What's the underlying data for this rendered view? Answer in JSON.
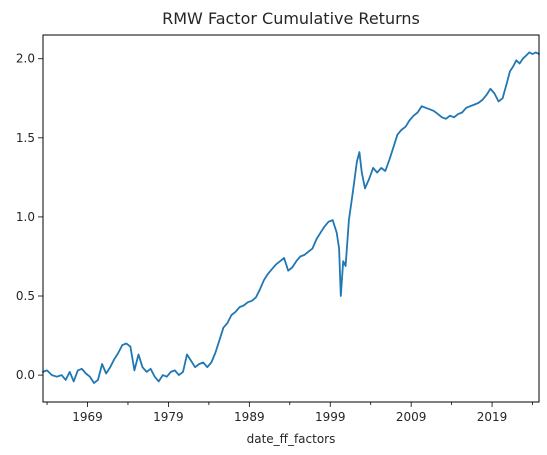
{
  "chart_data": {
    "type": "line",
    "title": "RMW Factor Cumulative Returns",
    "xlabel": "date_ff_factors",
    "ylabel": "",
    "x_ticks": [
      "1969",
      "1979",
      "1989",
      "1999",
      "2009",
      "2019"
    ],
    "y_ticks": [
      "0.0",
      "0.5",
      "1.0",
      "1.5",
      "2.0"
    ],
    "xlim": [
      1963.5,
      2024.8
    ],
    "ylim": [
      -0.17,
      2.15
    ],
    "grid": false,
    "legend": "none",
    "series": [
      {
        "color": "#1f77b4",
        "x": [
          1963.5,
          1964.0,
          1964.6,
          1965.2,
          1965.8,
          1966.3,
          1966.8,
          1967.3,
          1967.8,
          1968.3,
          1968.8,
          1969.3,
          1969.8,
          1970.3,
          1970.8,
          1971.3,
          1971.8,
          1972.3,
          1972.8,
          1973.3,
          1973.8,
          1974.3,
          1974.8,
          1975.3,
          1975.8,
          1976.3,
          1976.8,
          1977.3,
          1977.8,
          1978.3,
          1978.8,
          1979.3,
          1979.8,
          1980.3,
          1980.8,
          1981.3,
          1981.8,
          1982.3,
          1982.8,
          1983.3,
          1983.8,
          1984.3,
          1984.8,
          1985.3,
          1985.8,
          1986.3,
          1986.8,
          1987.3,
          1987.8,
          1988.3,
          1988.8,
          1989.3,
          1989.8,
          1990.3,
          1990.8,
          1991.3,
          1991.8,
          1992.3,
          1992.8,
          1993.3,
          1993.8,
          1994.3,
          1994.8,
          1995.3,
          1995.8,
          1996.3,
          1996.8,
          1997.3,
          1997.8,
          1998.3,
          1998.8,
          1999.3,
          1999.8,
          2000.1,
          2000.3,
          2000.6,
          2000.9,
          2001.3,
          2001.8,
          2002.3,
          2002.6,
          2002.9,
          2003.3,
          2003.8,
          2004.3,
          2004.8,
          2005.3,
          2005.8,
          2006.3,
          2006.8,
          2007.3,
          2007.8,
          2008.3,
          2008.8,
          2009.3,
          2009.8,
          2010.3,
          2010.8,
          2011.3,
          2011.8,
          2012.3,
          2012.8,
          2013.3,
          2013.8,
          2014.3,
          2014.8,
          2015.3,
          2015.8,
          2016.3,
          2016.8,
          2017.3,
          2017.8,
          2018.3,
          2018.8,
          2019.3,
          2019.8,
          2020.3,
          2020.8,
          2021.2,
          2021.6,
          2022.0,
          2022.4,
          2022.8,
          2023.2,
          2023.6,
          2024.0,
          2024.4,
          2024.8
        ],
        "values": [
          0.02,
          0.03,
          0.0,
          -0.01,
          0.0,
          -0.03,
          0.02,
          -0.04,
          0.03,
          0.04,
          0.01,
          -0.01,
          -0.05,
          -0.03,
          0.07,
          0.01,
          0.05,
          0.1,
          0.14,
          0.19,
          0.2,
          0.18,
          0.03,
          0.13,
          0.05,
          0.02,
          0.04,
          -0.01,
          -0.04,
          0.0,
          -0.01,
          0.02,
          0.03,
          0.0,
          0.02,
          0.13,
          0.09,
          0.05,
          0.07,
          0.08,
          0.05,
          0.08,
          0.14,
          0.22,
          0.3,
          0.33,
          0.38,
          0.4,
          0.43,
          0.44,
          0.46,
          0.47,
          0.49,
          0.54,
          0.6,
          0.64,
          0.67,
          0.7,
          0.72,
          0.74,
          0.66,
          0.68,
          0.72,
          0.75,
          0.76,
          0.78,
          0.8,
          0.86,
          0.9,
          0.94,
          0.97,
          0.98,
          0.9,
          0.8,
          0.5,
          0.72,
          0.69,
          0.98,
          1.16,
          1.35,
          1.41,
          1.28,
          1.18,
          1.24,
          1.31,
          1.28,
          1.31,
          1.29,
          1.36,
          1.44,
          1.52,
          1.55,
          1.57,
          1.61,
          1.64,
          1.66,
          1.7,
          1.69,
          1.68,
          1.67,
          1.65,
          1.63,
          1.62,
          1.64,
          1.63,
          1.65,
          1.66,
          1.69,
          1.7,
          1.71,
          1.72,
          1.74,
          1.77,
          1.81,
          1.78,
          1.73,
          1.75,
          1.84,
          1.92,
          1.95,
          1.99,
          1.97,
          2.0,
          2.02,
          2.04,
          2.03,
          2.04,
          2.03
        ]
      }
    ]
  }
}
